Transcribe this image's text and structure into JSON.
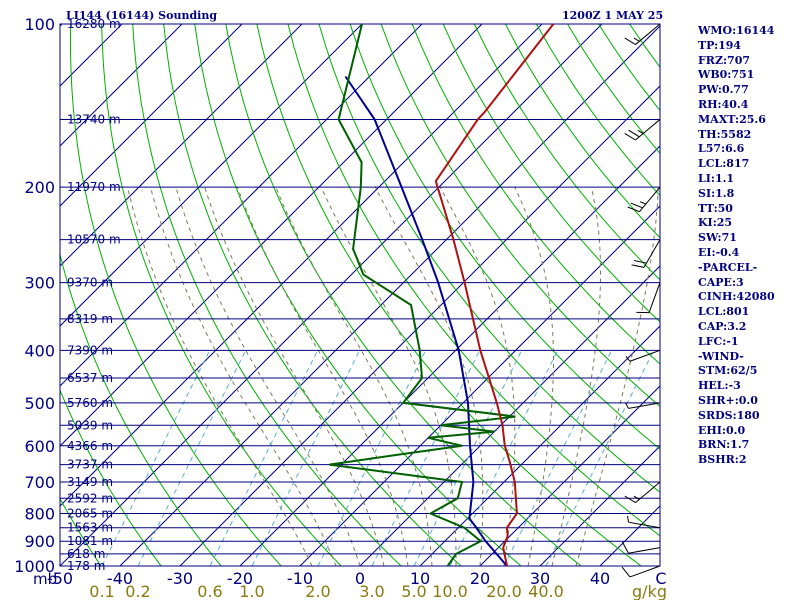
{
  "header": {
    "station_title": "LI144 (16144) Sounding",
    "time_title": "1200Z  1 MAY 25"
  },
  "colors": {
    "isobar": "#000080",
    "skew_isotherm": "#000080",
    "dry_adiabat": "#00b000",
    "moist_adiabat": "#7a7a5a",
    "mixing_ratio": "#5ab0d0",
    "temperature": "#b01010",
    "dewpoint": "#006000",
    "parcel": "#000090",
    "text": "#000080"
  },
  "indices": [
    "WMO:16144",
    "TP:194",
    "FRZ:707",
    "WB0:751",
    "PW:0.77",
    "RH:40.4",
    "MAXT:25.6",
    "TH:5582",
    "L57:6.6",
    "LCL:817",
    "LI:1.1",
    "SI:1.8",
    "TT:50",
    "KI:25",
    "SW:71",
    "EI:-0.4",
    "-PARCEL-",
    "CAPE:3",
    "CINH:42080",
    "LCL:801",
    "CAP:3.2",
    "LFC:-1",
    "-WIND-",
    "STM:62/5",
    "HEL:-3",
    "SHR+:0.0",
    "SRDS:180",
    "EHI:0.0",
    "BRN:1.7",
    "BSHR:2"
  ],
  "chart_data": {
    "type": "skew-t log-p sounding",
    "pressure_unit": "mb",
    "mixing_ratio_unit": "g/kg",
    "pressure_ticks": [
      100,
      200,
      300,
      400,
      500,
      600,
      700,
      800,
      900,
      1000
    ],
    "pressure_tick_labels": [
      "100",
      "200",
      "300",
      "400",
      "500",
      "600",
      "700",
      "800",
      "900",
      "1000"
    ],
    "temperature_ticks": [
      -50,
      -40,
      -30,
      -20,
      -10,
      0,
      10,
      20,
      30,
      40
    ],
    "temperature_tick_labels": [
      "-50",
      "-40",
      "-30",
      "-20",
      "-10",
      "0",
      "10",
      "20",
      "30",
      "40"
    ],
    "temperature_range": [
      -50,
      50
    ],
    "mixing_ratio_ticks": [
      0.1,
      0.2,
      0.6,
      1.0,
      2.0,
      3.0,
      5.0,
      10.0,
      20.0,
      40.0
    ],
    "mixing_ratio_tick_labels": [
      "0.1",
      "0.2",
      "0.6",
      "1.0",
      "2.0",
      "3.0",
      "5.0",
      "10.0",
      "20.0",
      "40.0"
    ],
    "mixing_ratio_bottom_temps": [
      -43,
      -37,
      -25,
      -18,
      -7,
      2,
      9,
      15,
      24,
      31
    ],
    "height_levels": [
      {
        "p": 100,
        "label": "16280 m"
      },
      {
        "p": 150,
        "label": "13740 m"
      },
      {
        "p": 200,
        "label": "11970 m"
      },
      {
        "p": 250,
        "label": "10570 m"
      },
      {
        "p": 300,
        "label": "9370 m"
      },
      {
        "p": 350,
        "label": "8319 m"
      },
      {
        "p": 400,
        "label": "7390 m"
      },
      {
        "p": 450,
        "label": "6537 m"
      },
      {
        "p": 500,
        "label": "5760 m"
      },
      {
        "p": 550,
        "label": "5039 m"
      },
      {
        "p": 600,
        "label": "4366 m"
      },
      {
        "p": 650,
        "label": "3737 m"
      },
      {
        "p": 700,
        "label": "3149 m"
      },
      {
        "p": 750,
        "label": "2592 m"
      },
      {
        "p": 800,
        "label": "2065 m"
      },
      {
        "p": 850,
        "label": "1563 m"
      },
      {
        "p": 900,
        "label": "1081 m"
      },
      {
        "p": 950,
        "label": "618 m"
      },
      {
        "p": 1000,
        "label": "178 m"
      }
    ],
    "temperature_profile": [
      {
        "p": 1000,
        "t": 24.5
      },
      {
        "p": 925,
        "t": 20.8
      },
      {
        "p": 880,
        "t": 19.6
      },
      {
        "p": 850,
        "t": 18.1
      },
      {
        "p": 800,
        "t": 17.4
      },
      {
        "p": 700,
        "t": 11.8
      },
      {
        "p": 640,
        "t": 7.4
      },
      {
        "p": 600,
        "t": 4.1
      },
      {
        "p": 550,
        "t": 0.3
      },
      {
        "p": 500,
        "t": -4.4
      },
      {
        "p": 400,
        "t": -15.9
      },
      {
        "p": 300,
        "t": -29.8
      },
      {
        "p": 250,
        "t": -38.8
      },
      {
        "p": 195,
        "t": -51.5
      },
      {
        "p": 150,
        "t": -54.8
      },
      {
        "p": 145,
        "t": -54.9
      },
      {
        "p": 100,
        "t": -58.1
      }
    ],
    "dewpoint_profile": [
      {
        "p": 1000,
        "t": 14.6
      },
      {
        "p": 950,
        "t": 14.0
      },
      {
        "p": 900,
        "t": 16.0
      },
      {
        "p": 850,
        "t": 11.0
      },
      {
        "p": 800,
        "t": 3.0
      },
      {
        "p": 750,
        "t": 5.0
      },
      {
        "p": 700,
        "t": 3.0
      },
      {
        "p": 650,
        "t": -22.0
      },
      {
        "p": 620,
        "t": -11.0
      },
      {
        "p": 600,
        "t": -3.0
      },
      {
        "p": 580,
        "t": -10.0
      },
      {
        "p": 565,
        "t": 0.0
      },
      {
        "p": 550,
        "t": -10.0
      },
      {
        "p": 530,
        "t": 1.0
      },
      {
        "p": 500,
        "t": -20.0
      },
      {
        "p": 450,
        "t": -21.0
      },
      {
        "p": 400,
        "t": -26.0
      },
      {
        "p": 330,
        "t": -35.0
      },
      {
        "p": 290,
        "t": -48.0
      },
      {
        "p": 260,
        "t": -54.0
      },
      {
        "p": 200,
        "t": -63.0
      },
      {
        "p": 180,
        "t": -67.0
      },
      {
        "p": 150,
        "t": -78.0
      },
      {
        "p": 100,
        "t": -90.0
      }
    ],
    "parcel_profile": [
      {
        "p": 1000,
        "t": 24.5
      },
      {
        "p": 900,
        "t": 16.8
      },
      {
        "p": 850,
        "t": 13.0
      },
      {
        "p": 817,
        "t": 10.3
      },
      {
        "p": 700,
        "t": 4.9
      },
      {
        "p": 600,
        "t": -1.7
      },
      {
        "p": 500,
        "t": -9.2
      },
      {
        "p": 400,
        "t": -19.5
      },
      {
        "p": 300,
        "t": -34.2
      },
      {
        "p": 250,
        "t": -44.0
      },
      {
        "p": 200,
        "t": -56.2
      },
      {
        "p": 150,
        "t": -72.0
      },
      {
        "p": 125,
        "t": -84.0
      }
    ],
    "wind_barbs": [
      {
        "p": 1000,
        "dir": 250,
        "spd": 10
      },
      {
        "p": 925,
        "dir": 260,
        "spd": 10
      },
      {
        "p": 850,
        "dir": 280,
        "spd": 5
      },
      {
        "p": 700,
        "dir": 230,
        "spd": 15
      },
      {
        "p": 500,
        "dir": 260,
        "spd": 5
      },
      {
        "p": 400,
        "dir": 250,
        "spd": 5
      },
      {
        "p": 300,
        "dir": 200,
        "spd": 10
      },
      {
        "p": 250,
        "dir": 210,
        "spd": 20
      },
      {
        "p": 200,
        "dir": 220,
        "spd": 25
      },
      {
        "p": 150,
        "dir": 230,
        "spd": 25
      },
      {
        "p": 100,
        "dir": 230,
        "spd": 15
      }
    ]
  }
}
